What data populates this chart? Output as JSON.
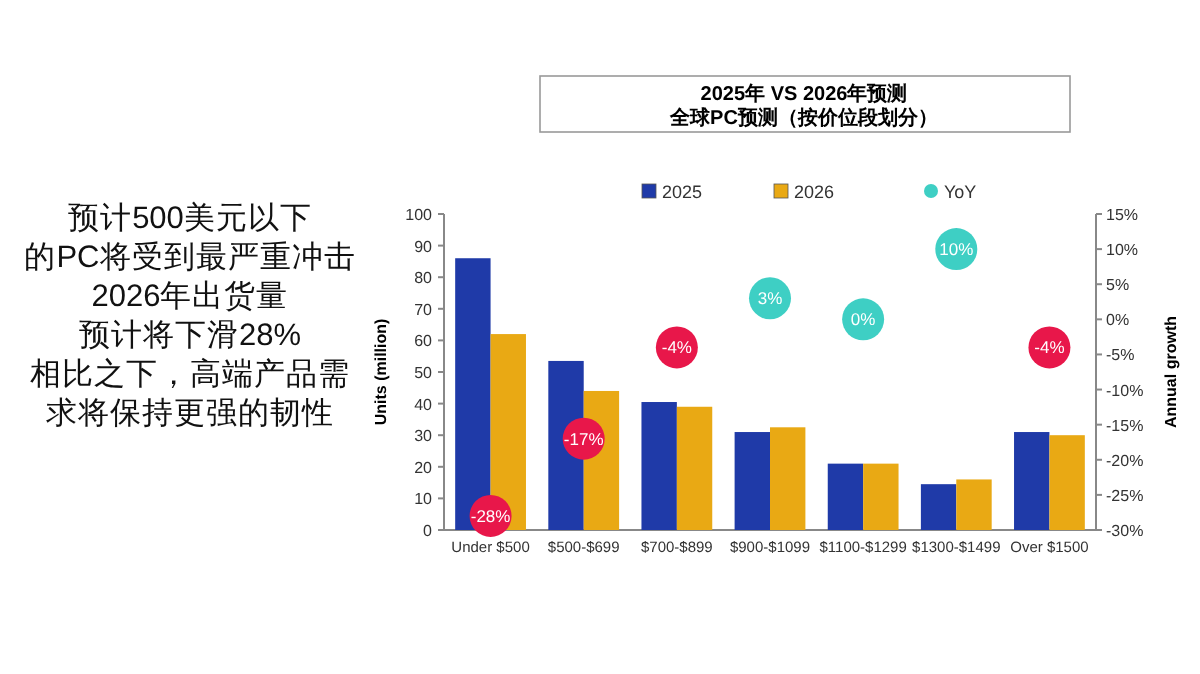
{
  "chart_data": {
    "type": "bar",
    "title": "2025年 VS 2026年预测",
    "subtitle": "全球PC预测（按价位段划分）",
    "ylabel": "Units (million)",
    "y2label": "Annual growth",
    "annotations": [
      "预计500美元以下",
      "的PC将受到最严重冲击",
      "2026年出货量",
      "预计将下滑28%",
      "相比之下，高端产品需",
      "求将保持更强的韧性"
    ],
    "categories": [
      "Under $500",
      "$500-$699",
      "$700-$899",
      "$900-$1099",
      "$1100-$1299",
      "$1300-$1499",
      "Over $1500"
    ],
    "series": [
      {
        "name": "2025",
        "color": "#1f3aa8",
        "values": [
          86,
          53.5,
          40.5,
          31,
          21,
          14.5,
          31
        ]
      },
      {
        "name": "2026",
        "color": "#e9a914",
        "values": [
          62,
          44,
          39,
          32.5,
          21,
          16,
          30
        ]
      },
      {
        "name": "YoY",
        "type": "scatter",
        "axis": "y2",
        "color": "#3ecfc4",
        "colors": [
          "#e8174a",
          "#e8174a",
          "#e8174a",
          "#3ecfc4",
          "#3ecfc4",
          "#3ecfc4",
          "#e8174a"
        ],
        "values": [
          -28,
          -17,
          -4,
          3,
          0,
          10,
          -4
        ],
        "value_labels": [
          "-28%",
          "-17%",
          "-4%",
          "3%",
          "0%",
          "10%",
          "-4%"
        ]
      }
    ],
    "ylim": [
      0,
      100
    ],
    "yticks": [
      0,
      10,
      20,
      30,
      40,
      50,
      60,
      70,
      80,
      90,
      100
    ],
    "y2lim": [
      -30,
      15
    ],
    "y2ticks": [
      {
        "value": -30,
        "label": "-30%"
      },
      {
        "value": -25,
        "label": "-25%"
      },
      {
        "value": -20,
        "label": "-20%"
      },
      {
        "value": -15,
        "label": "-15%"
      },
      {
        "value": -10,
        "label": "-10%"
      },
      {
        "value": -5,
        "label": "-5%"
      },
      {
        "value": 0,
        "label": "0%"
      },
      {
        "value": 5,
        "label": "5%"
      },
      {
        "value": 10,
        "label": "10%"
      },
      {
        "value": 15,
        "label": "15%"
      }
    ],
    "legend": "top",
    "grid": false
  }
}
